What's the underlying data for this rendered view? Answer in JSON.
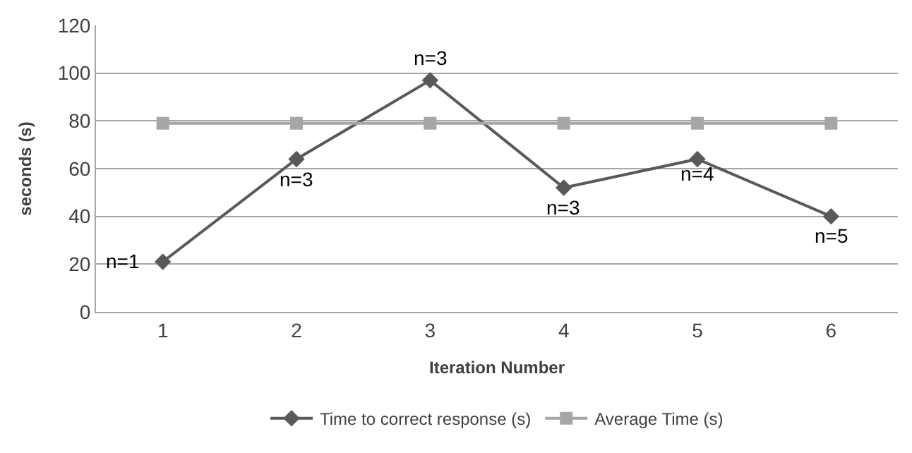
{
  "chart_data": {
    "type": "line",
    "xlabel": "Iteration Number",
    "ylabel": "seconds (s)",
    "categories": [
      "1",
      "2",
      "3",
      "4",
      "5",
      "6"
    ],
    "series": [
      {
        "name": "Time to correct response (s)",
        "color": "#595959",
        "marker": "diamond",
        "values": [
          21,
          64,
          97,
          52,
          64,
          40
        ]
      },
      {
        "name": "Average Time (s)",
        "color": "#a6a6a6",
        "marker": "square",
        "values": [
          79,
          79,
          79,
          79,
          79,
          79
        ]
      }
    ],
    "annotations": [
      {
        "text": "n=1",
        "x": "1",
        "y": 21
      },
      {
        "text": "n=3",
        "x": "2",
        "y": 64
      },
      {
        "text": "n=3",
        "x": "3",
        "y": 97
      },
      {
        "text": "n=3",
        "x": "4",
        "y": 52
      },
      {
        "text": "n=4",
        "x": "5",
        "y": 64
      },
      {
        "text": "n=5",
        "x": "6",
        "y": 40
      }
    ],
    "ylim": [
      0,
      120
    ],
    "yticks": [
      0,
      20,
      40,
      60,
      80,
      100,
      120
    ],
    "grid": "y",
    "legend": "bottom"
  }
}
